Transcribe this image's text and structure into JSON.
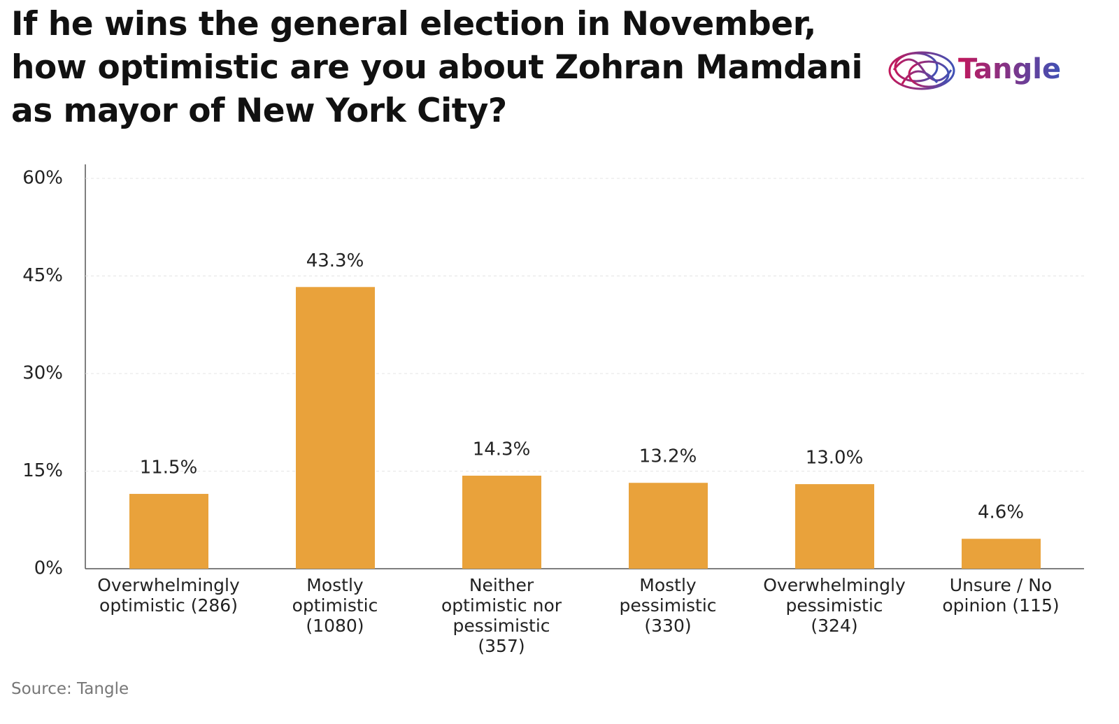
{
  "chart_data": {
    "type": "bar",
    "title": "If he wins the general election in November, how optimistic are you about Zohran Mamdani as mayor of New York City?",
    "logo": "Tangle",
    "source": "Source: Tangle",
    "categories": [
      "Overwhelmingly\noptimistic (286)",
      "Mostly\noptimistic\n(1080)",
      "Neither\noptimistic nor\npessimistic\n(357)",
      "Mostly\npessimistic\n(330)",
      "Overwhelmingly\npessimistic\n(324)",
      "Unsure / No\nopinion (115)"
    ],
    "values": [
      11.5,
      43.3,
      14.3,
      13.2,
      13.0,
      4.6
    ],
    "value_labels": [
      "11.5%",
      "43.3%",
      "14.3%",
      "13.2%",
      "13.0%",
      "4.6%"
    ],
    "color": "#e9a23b",
    "ylim": [
      0,
      60
    ],
    "yticks": [
      {
        "value": 0,
        "label": "0%"
      },
      {
        "value": 15,
        "label": "15%"
      },
      {
        "value": 30,
        "label": "30%"
      },
      {
        "value": 45,
        "label": "45%"
      },
      {
        "value": 60,
        "label": "60%"
      }
    ],
    "grid": true
  }
}
